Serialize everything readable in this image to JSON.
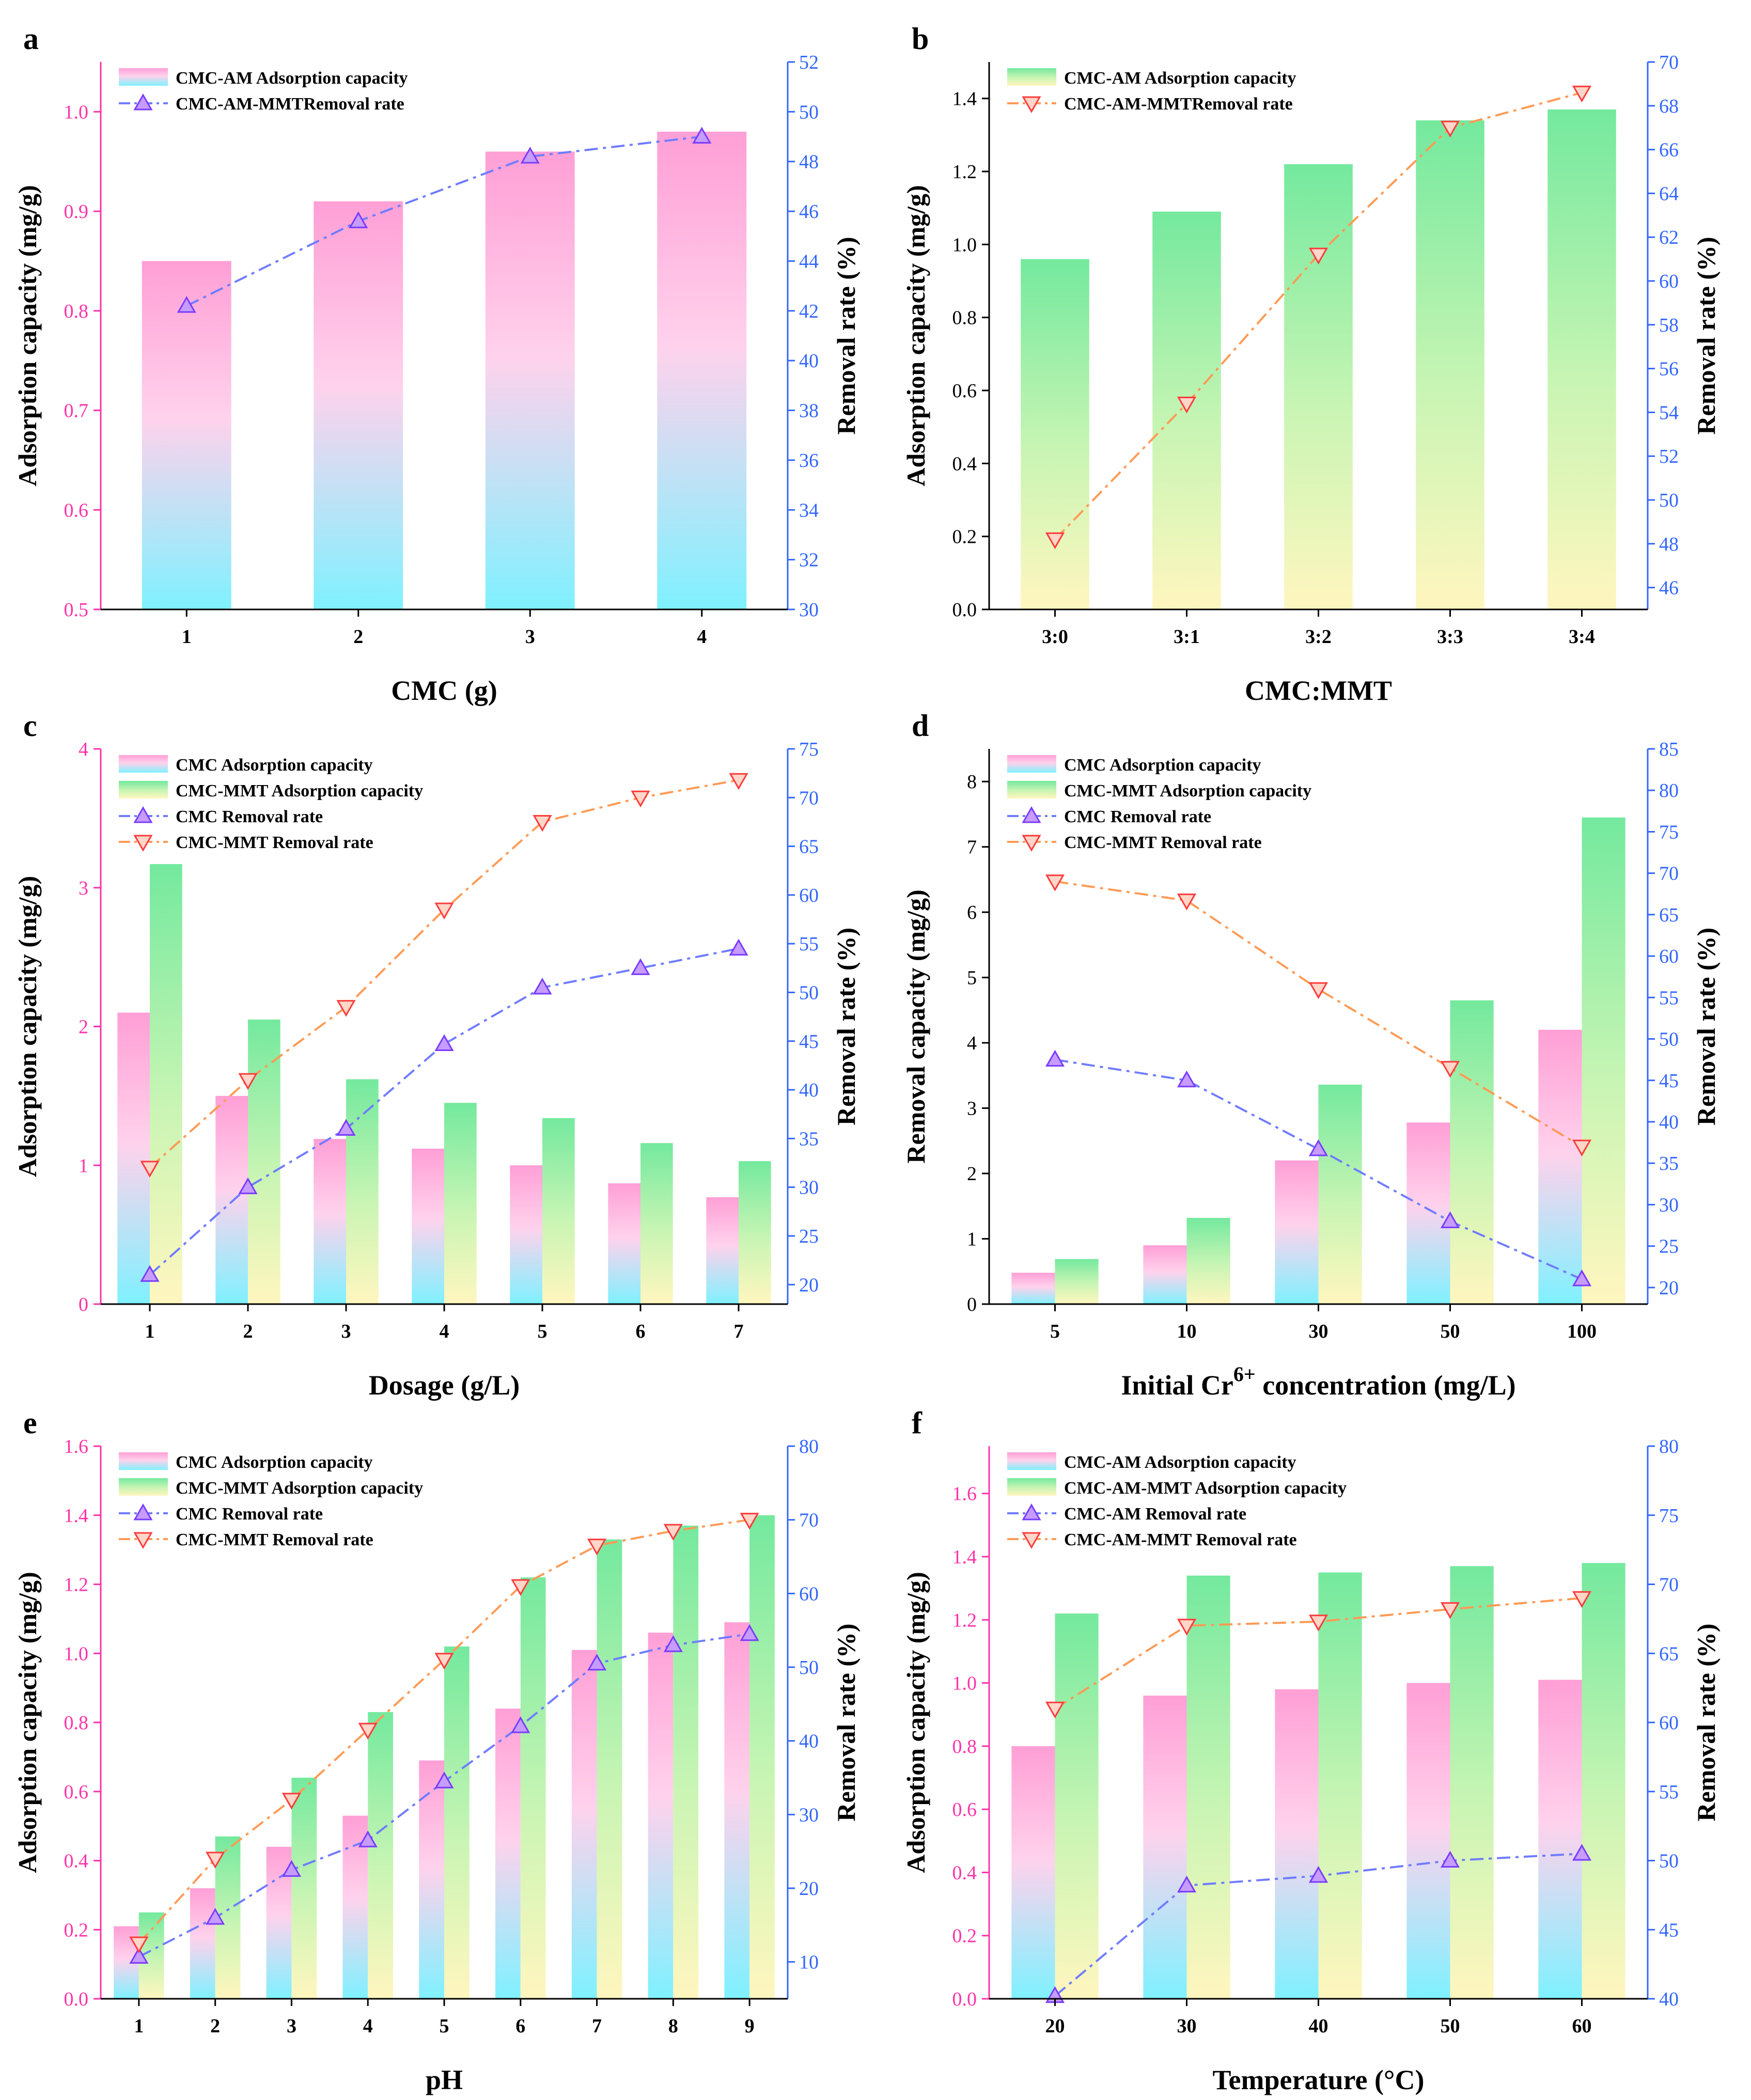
{
  "figure": {
    "panels": [
      "a",
      "b",
      "c",
      "d",
      "e",
      "f"
    ]
  },
  "chart_data": [
    {
      "panel_label": "a",
      "type": "bar+line",
      "categories": [
        "1",
        "2",
        "3",
        "4"
      ],
      "xlabel": "CMC (g)",
      "ylabel": "Adsorption capacity (mg/g)",
      "y2label": "Removal rate (%)",
      "ylim": [
        0.5,
        1.05
      ],
      "yticks": [
        0.5,
        0.6,
        0.7,
        0.8,
        0.9,
        1.0
      ],
      "y2lim": [
        30,
        52
      ],
      "y2ticks": [
        30,
        32,
        34,
        36,
        38,
        40,
        42,
        44,
        46,
        48,
        50,
        52
      ],
      "left_axis_color": "#ff33aa",
      "right_axis_color": "#3366ff",
      "bar_series": [
        {
          "name": "CMC-AM Adsorption capacity",
          "values": [
            0.85,
            0.91,
            0.96,
            0.98
          ],
          "style": "pink-cyan"
        }
      ],
      "line_series": [
        {
          "name": "CMC-AM-MMTRemoval rate",
          "values": [
            42.2,
            45.6,
            48.2,
            49.0
          ],
          "style": "blue",
          "marker": "up"
        }
      ],
      "legend": [
        {
          "label": "CMC-AM Adsorption capacity",
          "kind": "bar",
          "style": "pink-cyan"
        },
        {
          "label": "CMC-AM-MMTRemoval rate",
          "kind": "line",
          "style": "blue",
          "marker": "up"
        }
      ],
      "legend_position": "top-left"
    },
    {
      "panel_label": "b",
      "type": "bar+line",
      "categories": [
        "3:0",
        "3:1",
        "3:2",
        "3:3",
        "3:4"
      ],
      "xlabel": "CMC:MMT",
      "ylabel": "Adsorption capacity (mg/g)",
      "y2label": "Removal rate (%)",
      "ylim": [
        0,
        1.5
      ],
      "yticks": [
        0.0,
        0.2,
        0.4,
        0.6,
        0.8,
        1.0,
        1.2,
        1.4
      ],
      "y2lim": [
        45,
        70
      ],
      "y2ticks": [
        46,
        48,
        50,
        52,
        54,
        56,
        58,
        60,
        62,
        64,
        66,
        68,
        70
      ],
      "left_axis_color": "#000000",
      "right_axis_color": "#3366ff",
      "bar_series": [
        {
          "name": "CMC-AM Adsorption capacity",
          "values": [
            0.96,
            1.09,
            1.22,
            1.34,
            1.37
          ],
          "style": "green-yellow"
        }
      ],
      "line_series": [
        {
          "name": "CMC-AM-MMTRemoval rate",
          "values": [
            48.2,
            54.4,
            61.2,
            67.0,
            68.6
          ],
          "style": "orange",
          "marker": "down"
        }
      ],
      "legend": [
        {
          "label": "CMC-AM Adsorption capacity",
          "kind": "bar",
          "style": "green-yellow"
        },
        {
          "label": "CMC-AM-MMTRemoval rate",
          "kind": "line",
          "style": "orange",
          "marker": "down"
        }
      ],
      "legend_position": "top-left"
    },
    {
      "panel_label": "c",
      "type": "bar+line",
      "categories": [
        "1",
        "2",
        "3",
        "4",
        "5",
        "6",
        "7"
      ],
      "xlabel": "Dosage (g/L)",
      "ylabel": "Adsorption capacity (mg/g)",
      "y2label": "Removal rate (%)",
      "ylim": [
        0,
        4
      ],
      "yticks": [
        0,
        1,
        2,
        3,
        4
      ],
      "y2lim": [
        18,
        75
      ],
      "y2ticks": [
        20,
        25,
        30,
        35,
        40,
        45,
        50,
        55,
        60,
        65,
        70,
        75
      ],
      "left_axis_color": "#ff33aa",
      "right_axis_color": "#3366ff",
      "bar_series": [
        {
          "name": "CMC Adsorption capacity",
          "values": [
            2.1,
            1.5,
            1.19,
            1.12,
            1.0,
            0.87,
            0.77
          ],
          "style": "pink-cyan"
        },
        {
          "name": "CMC-MMT Adsorption capacity",
          "values": [
            3.17,
            2.05,
            1.62,
            1.45,
            1.34,
            1.16,
            1.03
          ],
          "style": "green-yellow"
        }
      ],
      "line_series": [
        {
          "name": "CMC Removal rate",
          "values": [
            21.0,
            30.0,
            36.0,
            44.7,
            50.5,
            52.5,
            54.5
          ],
          "style": "blue",
          "marker": "up"
        },
        {
          "name": "CMC-MMT Removal rate",
          "values": [
            32.0,
            41.0,
            48.5,
            58.5,
            67.5,
            70.0,
            71.8
          ],
          "style": "orange",
          "marker": "down"
        }
      ],
      "legend": [
        {
          "label": "CMC Adsorption capacity",
          "kind": "bar",
          "style": "pink-cyan"
        },
        {
          "label": "CMC-MMT Adsorption capacity",
          "kind": "bar",
          "style": "green-yellow"
        },
        {
          "label": "CMC Removal rate",
          "kind": "line",
          "style": "blue",
          "marker": "up"
        },
        {
          "label": "CMC-MMT Removal rate",
          "kind": "line",
          "style": "orange",
          "marker": "down"
        }
      ],
      "legend_position": "top-left"
    },
    {
      "panel_label": "d",
      "type": "bar+line",
      "categories": [
        "5",
        "10",
        "30",
        "50",
        "100"
      ],
      "xlabel": "Initial Cr",
      "xlabel_superscript": "6+",
      "xlabel_suffix": " concentration (mg/L)",
      "ylabel": "Removal capacity (mg/g)",
      "y2label": "Removal rate (%)",
      "ylim": [
        0,
        8.5
      ],
      "yticks": [
        0,
        1,
        2,
        3,
        4,
        5,
        6,
        7,
        8
      ],
      "y2lim": [
        18,
        85
      ],
      "y2ticks": [
        20,
        25,
        30,
        35,
        40,
        45,
        50,
        55,
        60,
        65,
        70,
        75,
        80,
        85
      ],
      "left_axis_color": "#000000",
      "right_axis_color": "#3366ff",
      "bar_series": [
        {
          "name": "CMC Adsorption capacity",
          "values": [
            0.48,
            0.9,
            2.2,
            2.78,
            4.2
          ],
          "style": "pink-cyan"
        },
        {
          "name": "CMC-MMT Adsorption capacity",
          "values": [
            0.69,
            1.32,
            3.36,
            4.65,
            7.45
          ],
          "style": "green-yellow"
        }
      ],
      "line_series": [
        {
          "name": "CMC Removal rate",
          "values": [
            47.5,
            45.0,
            36.7,
            28.0,
            21.0
          ],
          "style": "blue",
          "marker": "up"
        },
        {
          "name": "CMC-MMT Removal rate",
          "values": [
            69.0,
            66.7,
            56.0,
            46.5,
            37.0
          ],
          "style": "orange",
          "marker": "down"
        }
      ],
      "legend": [
        {
          "label": "CMC Adsorption capacity",
          "kind": "bar",
          "style": "pink-cyan"
        },
        {
          "label": "CMC-MMT Adsorption capacity",
          "kind": "bar",
          "style": "green-yellow"
        },
        {
          "label": "CMC Removal rate",
          "kind": "line",
          "style": "blue",
          "marker": "up"
        },
        {
          "label": "CMC-MMT Removal rate",
          "kind": "line",
          "style": "orange",
          "marker": "down"
        }
      ],
      "legend_position": "top-left"
    },
    {
      "panel_label": "e",
      "type": "bar+line",
      "categories": [
        "1",
        "2",
        "3",
        "4",
        "5",
        "6",
        "7",
        "8",
        "9"
      ],
      "xlabel": "pH",
      "ylabel": "Adsorption capacity (mg/g)",
      "y2label": "Removal rate (%)",
      "ylim": [
        0,
        1.6
      ],
      "yticks": [
        0.0,
        0.2,
        0.4,
        0.6,
        0.8,
        1.0,
        1.2,
        1.4,
        1.6
      ],
      "y2lim": [
        5,
        80
      ],
      "y2ticks": [
        10,
        20,
        30,
        40,
        50,
        60,
        70,
        80
      ],
      "left_axis_color": "#ff33aa",
      "right_axis_color": "#3366ff",
      "bar_series": [
        {
          "name": "CMC Adsorption capacity",
          "values": [
            0.21,
            0.32,
            0.44,
            0.53,
            0.69,
            0.84,
            1.01,
            1.06,
            1.09
          ],
          "style": "pink-cyan"
        },
        {
          "name": "CMC-MMT Adsorption capacity",
          "values": [
            0.25,
            0.47,
            0.64,
            0.83,
            1.02,
            1.22,
            1.33,
            1.37,
            1.4
          ],
          "style": "green-yellow"
        }
      ],
      "line_series": [
        {
          "name": "CMC Removal rate",
          "values": [
            10.7,
            16.0,
            22.5,
            26.5,
            34.5,
            42.0,
            50.5,
            53.0,
            54.5
          ],
          "style": "blue",
          "marker": "up"
        },
        {
          "name": "CMC-MMT Removal rate",
          "values": [
            12.5,
            24.0,
            32.0,
            41.5,
            51.0,
            61.0,
            66.5,
            68.5,
            70.0
          ],
          "style": "orange",
          "marker": "down"
        }
      ],
      "legend": [
        {
          "label": "CMC Adsorption capacity",
          "kind": "bar",
          "style": "pink-cyan"
        },
        {
          "label": "CMC-MMT Adsorption capacity",
          "kind": "bar",
          "style": "green-yellow"
        },
        {
          "label": "CMC Removal rate",
          "kind": "line",
          "style": "blue",
          "marker": "up"
        },
        {
          "label": "CMC-MMT Removal rate",
          "kind": "line",
          "style": "orange",
          "marker": "down"
        }
      ],
      "legend_position": "top-left"
    },
    {
      "panel_label": "f",
      "type": "bar+line",
      "categories": [
        "20",
        "30",
        "40",
        "50",
        "60"
      ],
      "xlabel": "Temperature (°C)",
      "ylabel": "Adsorption capacity (mg/g)",
      "y2label": "Removal rate (%)",
      "ylim": [
        0,
        1.75
      ],
      "yticks": [
        0.0,
        0.2,
        0.4,
        0.6,
        0.8,
        1.0,
        1.2,
        1.4,
        1.6
      ],
      "y2lim": [
        40,
        80
      ],
      "y2ticks": [
        40,
        45,
        50,
        55,
        60,
        65,
        70,
        75,
        80
      ],
      "left_axis_color": "#ff33aa",
      "right_axis_color": "#3366ff",
      "bar_series": [
        {
          "name": "CMC-AM Adsorption capacity",
          "values": [
            0.8,
            0.96,
            0.98,
            1.0,
            1.01
          ],
          "style": "pink-cyan"
        },
        {
          "name": "CMC-AM-MMT Adsorption capacity",
          "values": [
            1.22,
            1.34,
            1.35,
            1.37,
            1.38
          ],
          "style": "green-yellow"
        }
      ],
      "line_series": [
        {
          "name": "CMC-AM Removal rate",
          "values": [
            40.2,
            48.2,
            48.9,
            50.0,
            50.5
          ],
          "style": "blue",
          "marker": "up"
        },
        {
          "name": "CMC-AM-MMT Removal rate",
          "values": [
            61.0,
            67.0,
            67.3,
            68.2,
            69.0
          ],
          "style": "orange",
          "marker": "down"
        }
      ],
      "legend": [
        {
          "label": "CMC-AM Adsorption capacity",
          "kind": "bar",
          "style": "pink-cyan"
        },
        {
          "label": "CMC-AM-MMT Adsorption capacity",
          "kind": "bar",
          "style": "green-yellow"
        },
        {
          "label": "CMC-AM Removal rate",
          "kind": "line",
          "style": "blue",
          "marker": "up"
        },
        {
          "label": "CMC-AM-MMT Removal rate",
          "kind": "line",
          "style": "orange",
          "marker": "down"
        }
      ],
      "legend_position": "top-left"
    }
  ]
}
